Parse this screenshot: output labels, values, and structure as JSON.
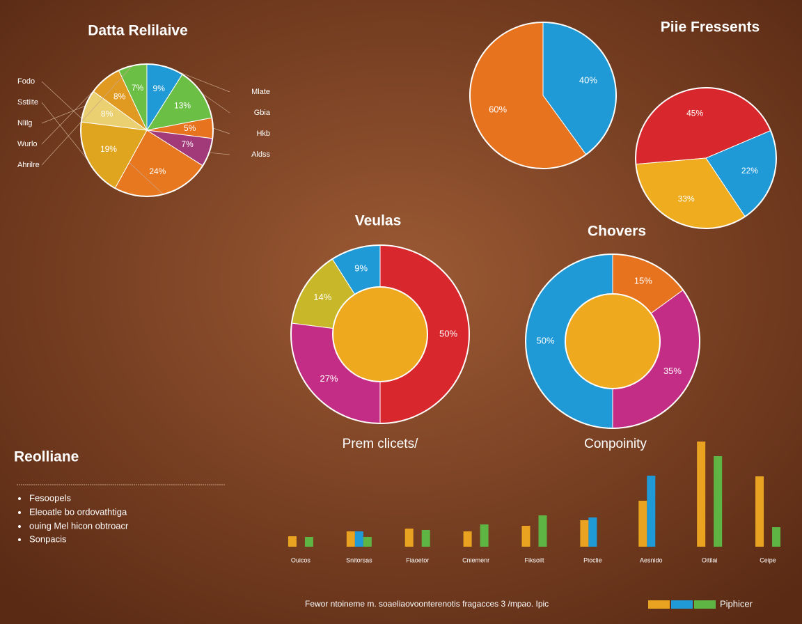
{
  "chart_data": [
    {
      "type": "pie",
      "title": "Datta Relilaive",
      "categories": [
        "Mlate",
        "Gbia",
        "Hkb",
        "Aldss",
        "Fodo",
        "Sstiite",
        "Nlilg",
        "Wurlo",
        "Ahrilre"
      ],
      "values": [
        9,
        13,
        5,
        7,
        24,
        19,
        8,
        8,
        7
      ],
      "value_labels": [
        "9%",
        "13%",
        "5%",
        "7%",
        "24%",
        "19%",
        "8%",
        "8%",
        "7%"
      ],
      "colors": [
        "#1f9ad6",
        "#6cbf45",
        "#e8731f",
        "#a23a7a",
        "#e8781f",
        "#e0a51f",
        "#ead071",
        "#e09a22",
        "#6cbf45"
      ]
    },
    {
      "type": "pie",
      "title": "Piie Fressents",
      "values": [
        40,
        60
      ],
      "value_labels": [
        "40%",
        "60%"
      ],
      "colors": [
        "#1f9ad6",
        "#e8731f"
      ]
    },
    {
      "type": "pie",
      "values": [
        45,
        22,
        33
      ],
      "value_labels": [
        "45%",
        "22%",
        "33%"
      ],
      "colors": [
        "#d8282d",
        "#1f9ad6",
        "#efac1f"
      ]
    },
    {
      "type": "donut",
      "title": "Veulas",
      "subtitle": "Prem clicets/",
      "values": [
        50,
        27,
        14,
        9
      ],
      "value_labels": [
        "50%",
        "27%",
        "14%",
        "9%"
      ],
      "colors": [
        "#d8282d",
        "#c42d86",
        "#c9b72a",
        "#1f9ad6"
      ]
    },
    {
      "type": "donut",
      "title": "Chovers",
      "subtitle": "Conpoinity",
      "values": [
        15,
        35,
        50
      ],
      "value_labels": [
        "15%",
        "35%",
        "50%"
      ],
      "colors": [
        "#e8731f",
        "#c42d86",
        "#1f9ad6"
      ]
    },
    {
      "type": "bar",
      "legend_label": "Piphicer",
      "ylim": [
        0,
        160
      ],
      "categories": [
        "Ouicos",
        "Snitorsas",
        "Fiaoetor",
        "Cniemenr",
        "Fiksoilt",
        "Pioclie",
        "Aesnido",
        "Oitilai",
        "Ceipe"
      ],
      "series": [
        {
          "color": "#e9a320",
          "values": [
            15,
            22,
            26,
            22,
            30,
            38,
            66,
            151,
            101
          ]
        },
        {
          "color": "#1f9ad6",
          "values": [
            0,
            22,
            0,
            0,
            0,
            42,
            102,
            0,
            0
          ]
        },
        {
          "color": "#5fb544",
          "values": [
            14,
            14,
            24,
            32,
            45,
            0,
            0,
            130,
            28
          ]
        }
      ]
    }
  ],
  "sidebar": {
    "title": "Reolliane",
    "items": [
      "Fesoopels",
      "Eleoatle bo ordovathtiga",
      "ouing Mel hicon obtroacr",
      "Sonpacis"
    ]
  },
  "footer": "Fewor ntoineme m. soaeliaovoonterenotis fragacces 3 /mpao. Ipic"
}
